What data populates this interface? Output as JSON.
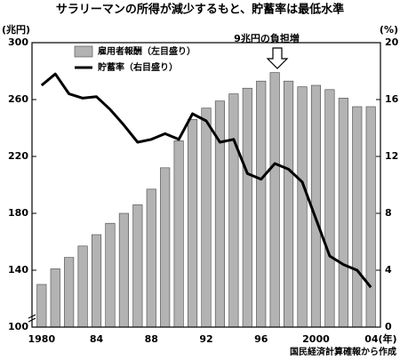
{
  "chart_data": {
    "type": "bar",
    "title": "サラリーマンの所得が減少するもと、貯蓄率は最低水準",
    "y_label": "(兆円)",
    "y2_label": "(%)",
    "annotation": "9兆円の負担増",
    "source": "国民経済計算確報から作成",
    "x": [
      1980,
      1981,
      1982,
      1983,
      1984,
      1985,
      1986,
      1987,
      1988,
      1989,
      1990,
      1991,
      1992,
      1993,
      1994,
      1995,
      1996,
      1997,
      1998,
      1999,
      2000,
      2001,
      2002,
      2003,
      2004
    ],
    "series": [
      {
        "name": "雇用者報酬（左目盛り）",
        "type": "bar",
        "color": "#b3b3b3",
        "values": [
          130,
          141,
          149,
          157,
          165,
          173,
          180,
          186,
          197,
          212,
          231,
          246,
          254,
          259,
          264,
          268,
          273,
          279,
          273,
          269,
          270,
          267,
          261,
          255,
          255
        ]
      },
      {
        "name": "貯蓄率（右目盛り）",
        "type": "line",
        "axis": "y2",
        "color": "#000000",
        "values": [
          17.0,
          17.8,
          16.4,
          16.1,
          16.2,
          15.3,
          14.2,
          13.0,
          13.2,
          13.6,
          13.2,
          15.0,
          14.5,
          13.0,
          13.2,
          10.8,
          10.4,
          11.5,
          11.1,
          10.2,
          7.6,
          5.0,
          4.4,
          4.0,
          2.8
        ]
      }
    ],
    "xlim": [
      1979.3,
      2004.7
    ],
    "xticks": [
      {
        "value": 1980,
        "label": "1980"
      },
      {
        "value": 1984,
        "label": "84"
      },
      {
        "value": 1988,
        "label": "88"
      },
      {
        "value": 1992,
        "label": "92"
      },
      {
        "value": 1996,
        "label": "96"
      },
      {
        "value": 2000,
        "label": "2000"
      },
      {
        "value": 2004,
        "label": "04(年)"
      }
    ],
    "ylim": [
      100,
      300
    ],
    "yticks": [
      100,
      140,
      180,
      220,
      260,
      300
    ],
    "y2lim": [
      0,
      20
    ],
    "y2ticks": [
      0,
      4,
      8,
      12,
      16,
      20
    ]
  }
}
